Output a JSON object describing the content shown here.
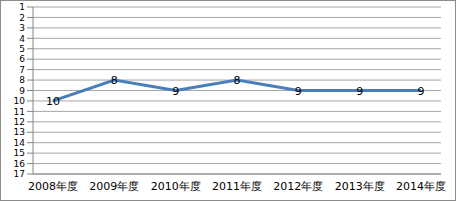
{
  "chart_data": {
    "type": "line",
    "categories": [
      "2008年度",
      "2009年度",
      "2010年度",
      "2011年度",
      "2012年度",
      "2013年度",
      "2014年度"
    ],
    "values": [
      10,
      8,
      9,
      8,
      9,
      9,
      9
    ],
    "color": "#4a7ebb",
    "ylim": [
      17,
      1
    ],
    "yticks": [
      1,
      2,
      3,
      4,
      5,
      6,
      7,
      8,
      9,
      10,
      11,
      12,
      13,
      14,
      15,
      16,
      17
    ],
    "grid": true,
    "data_labels": true,
    "marker": "none"
  }
}
